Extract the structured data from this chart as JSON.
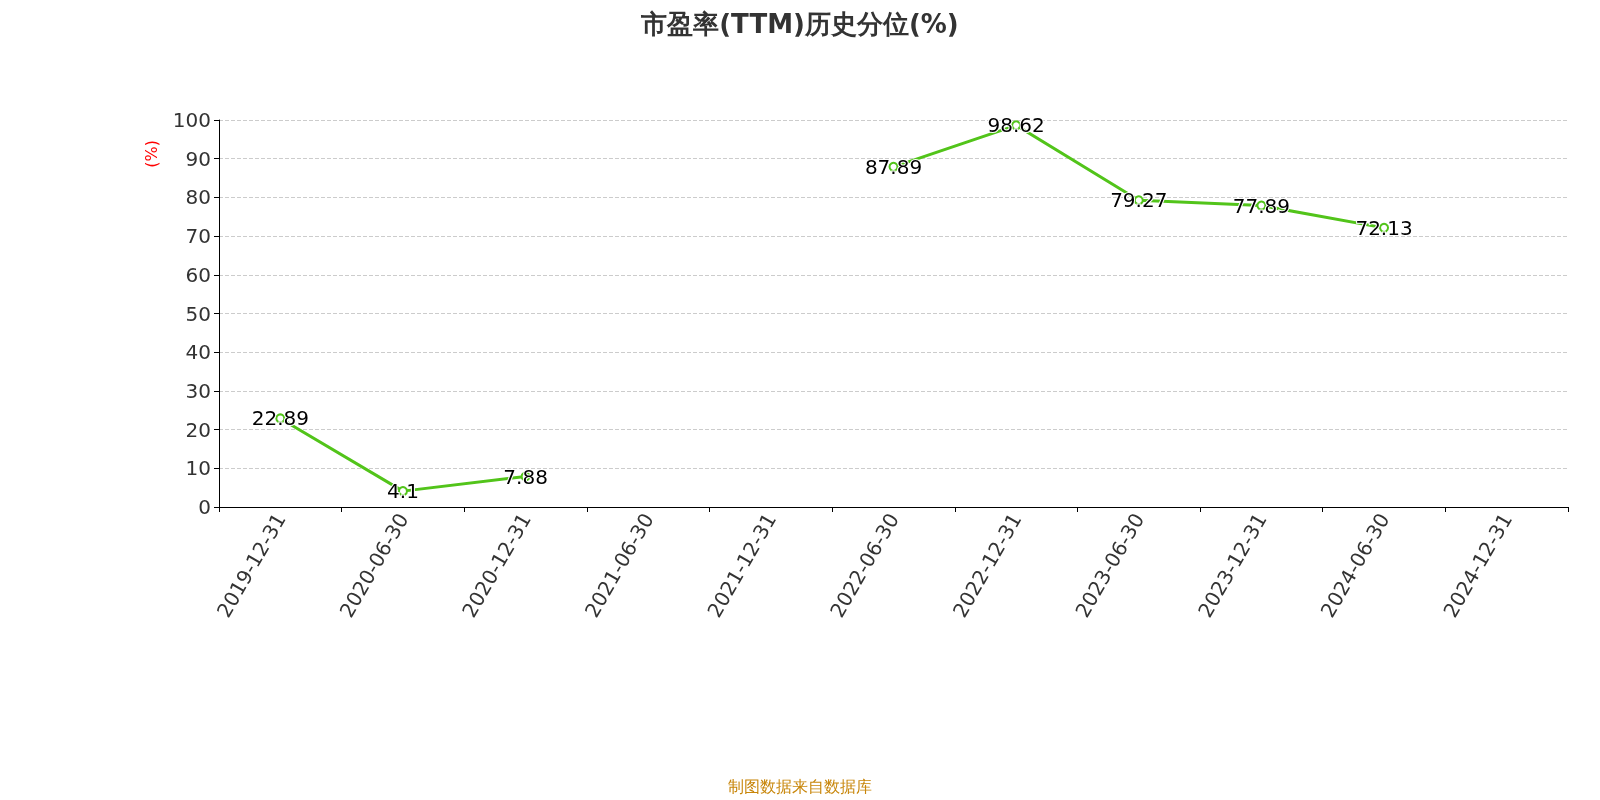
{
  "chart_data": {
    "type": "line",
    "title": "市盈率(TTM)历史分位(%)",
    "ylabel": "(%)",
    "categories": [
      "2019-12-31",
      "2020-06-30",
      "2020-12-31",
      "2021-06-30",
      "2021-12-31",
      "2022-06-30",
      "2022-12-31",
      "2023-06-30",
      "2023-12-31",
      "2024-06-30",
      "2024-12-31"
    ],
    "series": [
      {
        "color": "#52c41a",
        "values": [
          22.89,
          4.1,
          7.88,
          null,
          null,
          87.89,
          98.62,
          79.27,
          77.89,
          72.13,
          null
        ]
      }
    ],
    "ylim": [
      0,
      100
    ],
    "yticks": [
      0,
      10,
      20,
      30,
      40,
      50,
      60,
      70,
      80,
      90,
      100
    ],
    "grid": "y",
    "marker": "circle",
    "line_style": "solid",
    "data_labels": true,
    "annotations": [
      "制图数据来自数据库"
    ]
  }
}
